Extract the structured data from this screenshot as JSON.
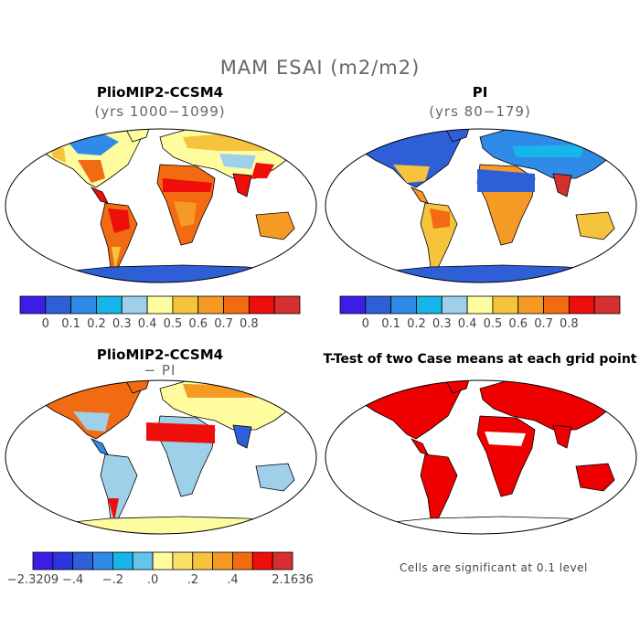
{
  "figure": {
    "title": "MAM ESAI (m2/m2)",
    "panels": [
      {
        "title": "PlioMIP2-CCSM4",
        "subtitle": "(yrs 1000−1099)"
      },
      {
        "title": "PI",
        "subtitle": "(yrs 80−179)"
      },
      {
        "title": "PlioMIP2-CCSM4",
        "subtitle": "− PI"
      },
      {
        "title": "T-Test of two Case means at each grid point",
        "subtitle": ""
      }
    ],
    "note": "Cells are significant at 0.1 level"
  },
  "chart_data": [
    {
      "type": "heatmap",
      "name": "PlioMIP2-CCSM4 (yrs 1000-1099)",
      "colorbar": {
        "colors": [
          "#3a1ee6",
          "#2f5fd6",
          "#2f8ae8",
          "#16b5ea",
          "#9fd0e9",
          "#fefc9e",
          "#f5c33c",
          "#f59a24",
          "#f26b12",
          "#ee0e0c",
          "#d62f2f"
        ],
        "tick_labels": [
          "0",
          "0.1",
          "0.2",
          "0.3",
          "0.4",
          "0.5",
          "0.6",
          "0.7",
          "0.8"
        ]
      }
    },
    {
      "type": "heatmap",
      "name": "PI (yrs 80-179)",
      "colorbar": {
        "colors": [
          "#3a1ee6",
          "#2f5fd6",
          "#2f8ae8",
          "#16b5ea",
          "#9fd0e9",
          "#fefc9e",
          "#f5c33c",
          "#f59a24",
          "#f26b12",
          "#ee0e0c",
          "#d62f2f"
        ],
        "tick_labels": [
          "0",
          "0.1",
          "0.2",
          "0.3",
          "0.4",
          "0.5",
          "0.6",
          "0.7",
          "0.8"
        ]
      }
    },
    {
      "type": "heatmap",
      "name": "PlioMIP2-CCSM4 - PI",
      "colorbar": {
        "colors": [
          "#3a1ee6",
          "#2a34e0",
          "#2f5fd6",
          "#2f8ae8",
          "#16b5ea",
          "#64c4ee",
          "#fefc9e",
          "#fbe06a",
          "#f5c33c",
          "#f59a24",
          "#f26b12",
          "#ee0e0c",
          "#d62f2f"
        ],
        "tick_labels": [
          "−2.3209",
          "−.4",
          "−.2",
          ".0",
          ".2",
          ".4",
          "2.1636"
        ]
      }
    },
    {
      "type": "heatmap",
      "name": "T-Test significance",
      "significance_level": 0.1
    }
  ],
  "map_colors": {
    "ocean": "#ffffff",
    "outline": "#000000",
    "significant": "#ee0000"
  }
}
